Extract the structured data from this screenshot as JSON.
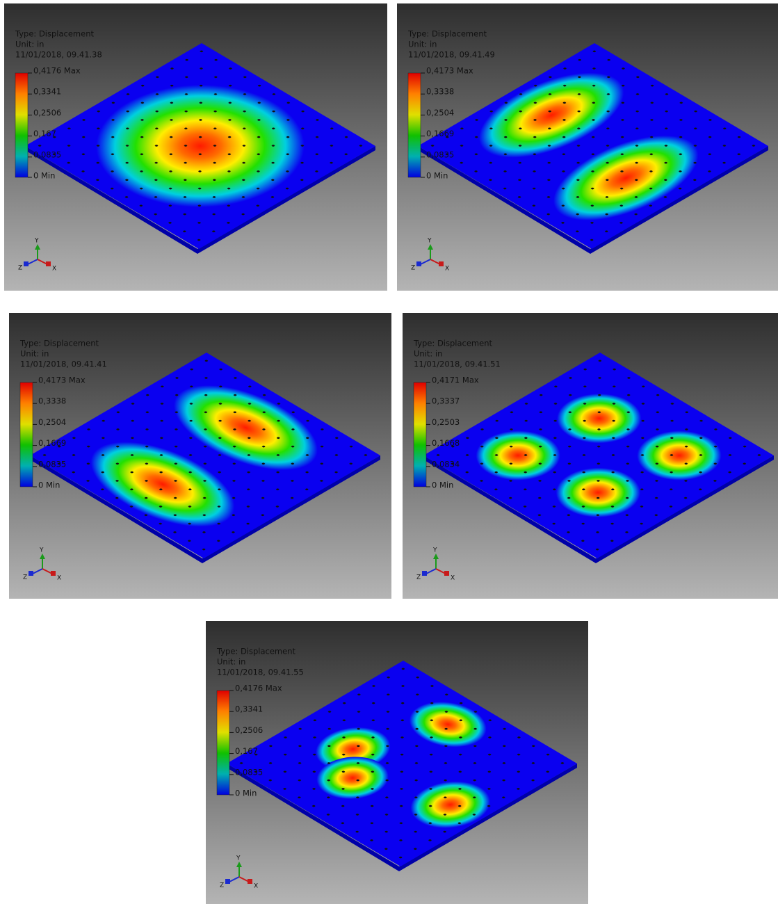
{
  "panels": [
    {
      "type_label": "Type: Displacement",
      "unit": "Unit: in",
      "timestamp": "11/01/2018, 09.41.38",
      "legend": [
        "0,4176 Max",
        "0,3341",
        "0,2506",
        "0,167",
        "0,0835",
        "0 Min"
      ],
      "axes": [
        "Y",
        "Z",
        "X"
      ]
    },
    {
      "type_label": "Type: Displacement",
      "unit": "Unit: in",
      "timestamp": "11/01/2018, 09.41.49",
      "legend": [
        "0,4173 Max",
        "0,3338",
        "0,2504",
        "0,1669",
        "0,0835",
        "0 Min"
      ],
      "axes": [
        "Y",
        "Z",
        "X"
      ]
    },
    {
      "type_label": "Type: Displacement",
      "unit": "Unit: in",
      "timestamp": "11/01/2018, 09.41.41",
      "legend": [
        "0,4173 Max",
        "0,3338",
        "0,2504",
        "0,1669",
        "0,0835",
        "0 Min"
      ],
      "axes": [
        "Y",
        "Z",
        "X"
      ]
    },
    {
      "type_label": "Type: Displacement",
      "unit": "Unit: in",
      "timestamp": "11/01/2018, 09.41.51",
      "legend": [
        "0,4171 Max",
        "0,3337",
        "0,2503",
        "0,1668",
        "0,0834",
        "0 Min"
      ],
      "axes": [
        "Y",
        "Z",
        "X"
      ]
    },
    {
      "type_label": "Type: Displacement",
      "unit": "Unit: in",
      "timestamp": "11/01/2018, 09.41.55",
      "legend": [
        "0,4176 Max",
        "0,3341",
        "0,2506",
        "0,167",
        "0,0835",
        "0 Min"
      ],
      "axes": [
        "Y",
        "Z",
        "X"
      ]
    }
  ]
}
